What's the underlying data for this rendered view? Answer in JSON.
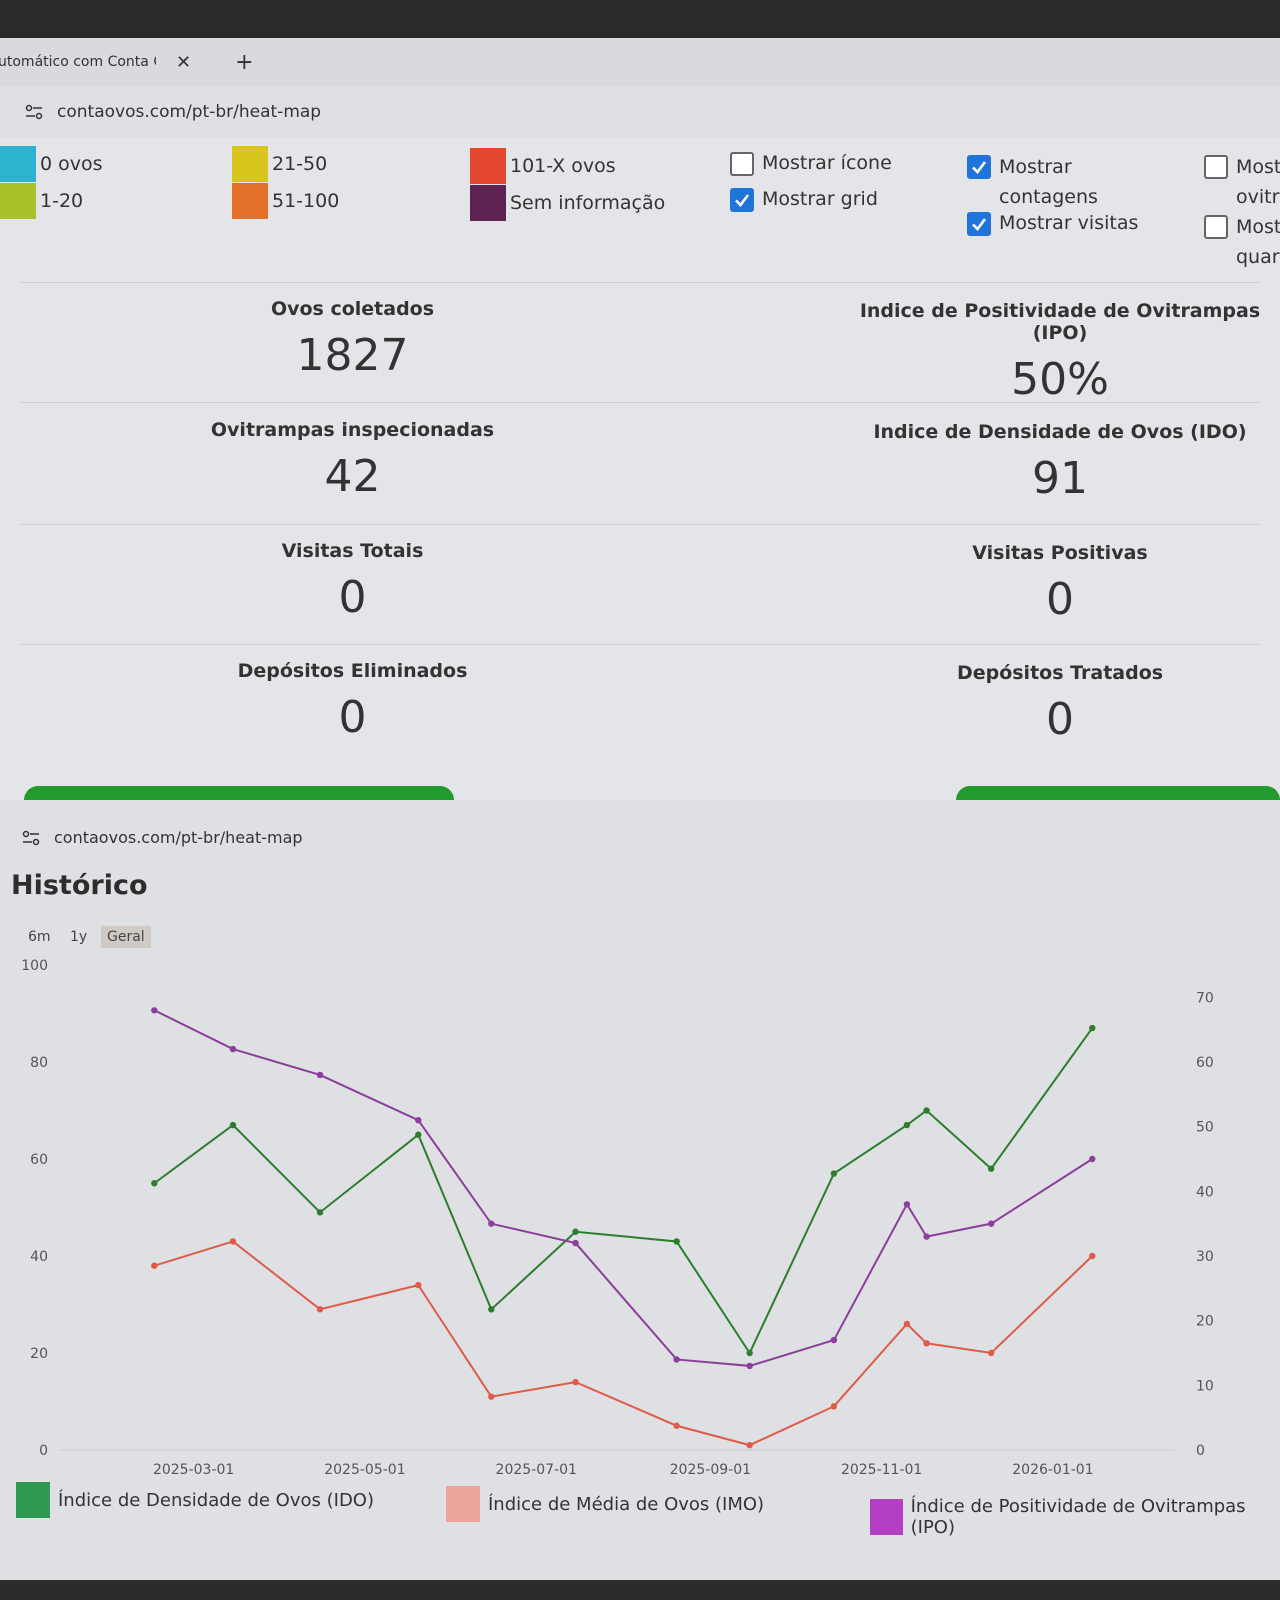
{
  "browser": {
    "tab_title": "utomático com Conta C",
    "close_glyph": "✕",
    "new_tab_glyph": "+",
    "url": "contaovos.com/pt-br/heat-map"
  },
  "legend": [
    {
      "label": "0 ovos",
      "color": "#2bb3cf"
    },
    {
      "label": "1-20",
      "color": "#a9c12a"
    },
    {
      "label": "21-50",
      "color": "#d8c51d"
    },
    {
      "label": "51-100",
      "color": "#e2712c"
    },
    {
      "label": "101-X ovos",
      "color": "#e3472f"
    },
    {
      "label": "Sem informação",
      "color": "#5c2250"
    }
  ],
  "checkboxes": [
    {
      "label": "Mostrar ícone",
      "checked": false
    },
    {
      "label": "Mostrar grid",
      "checked": true
    },
    {
      "label": "Mostrar contagens",
      "checked": true
    },
    {
      "label": "Mostrar visitas",
      "checked": true
    },
    {
      "label": "Most ovitra",
      "checked": false
    },
    {
      "label": "Most quart",
      "checked": false
    }
  ],
  "stats": {
    "ovos_label": "Ovos coletados",
    "ovos_value": "1827",
    "ipo_label": "Indice de Positividade de Ovitrampas (IPO)",
    "ipo_value": "50%",
    "ovi_label": "Ovitrampas inspecionadas",
    "ovi_value": "42",
    "ido_label": "Indice de Densidade de Ovos (IDO)",
    "ido_value": "91",
    "vt_label": "Visitas Totais",
    "vt_value": "0",
    "vp_label": "Visitas Positivas",
    "vp_value": "0",
    "de_label": "Depósitos Eliminados",
    "de_value": "0",
    "dt_label": "Depósitos Tratados",
    "dt_value": "0"
  },
  "history": {
    "title": "Histórico",
    "ranges": [
      "6m",
      "1y",
      "Geral"
    ],
    "active_range": "Geral"
  },
  "colors": {
    "ido": "#2e7d2e",
    "imo": "#e05a4a",
    "ipo": "#8a3f9a",
    "imo_swatch": "#eda49a",
    "ipo_swatch": "#b43fc4",
    "ido_swatch": "#2f9a52"
  },
  "chart_data": {
    "type": "line",
    "x_ticks": [
      "2025-03-01",
      "2025-05-01",
      "2025-07-01",
      "2025-09-01",
      "2025-11-01",
      "2026-01-01"
    ],
    "left_axis": {
      "ticks": [
        0,
        20,
        40,
        60,
        80,
        100
      ],
      "range": [
        0,
        100
      ]
    },
    "right_axis": {
      "ticks": [
        0,
        10,
        20,
        30,
        40,
        50,
        60,
        70
      ],
      "range": [
        0,
        75
      ]
    },
    "x": [
      "2025-02-15",
      "2025-03-15",
      "2025-04-15",
      "2025-05-20",
      "2025-06-15",
      "2025-07-15",
      "2025-08-20",
      "2025-09-15",
      "2025-10-15",
      "2025-11-10",
      "2025-11-17",
      "2025-12-10",
      "2026-01-15"
    ],
    "series": [
      {
        "name": "Índice de Densidade de Ovos (IDO)",
        "axis": "left",
        "values": [
          55,
          67,
          49,
          65,
          29,
          45,
          43,
          20,
          57,
          67,
          70,
          58,
          87
        ]
      },
      {
        "name": "Índice de Média de Ovos (IMO)",
        "axis": "left",
        "values": [
          38,
          43,
          29,
          34,
          11,
          14,
          5,
          1,
          9,
          26,
          22,
          20,
          40
        ]
      },
      {
        "name": "Índice de Positividade de Ovitrampas (IPO)",
        "axis": "right",
        "values": [
          68,
          62,
          58,
          51,
          35,
          32,
          14,
          13,
          17,
          38,
          33,
          35,
          45
        ]
      }
    ]
  }
}
